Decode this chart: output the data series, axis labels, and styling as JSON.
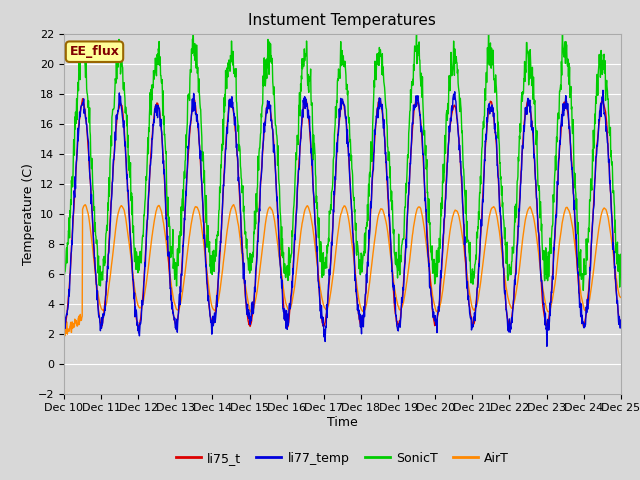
{
  "title": "Instument Temperatures",
  "xlabel": "Time",
  "ylabel": "Temperature (C)",
  "ylim": [
    -2,
    22
  ],
  "x_tick_labels": [
    "Dec 10",
    "Dec 11",
    "Dec 12",
    "Dec 13",
    "Dec 14",
    "Dec 15",
    "Dec 16",
    "Dec 17",
    "Dec 18",
    "Dec 19",
    "Dec 20",
    "Dec 21",
    "Dec 22",
    "Dec 23",
    "Dec 24",
    "Dec 25"
  ],
  "annotation_text": "EE_flux",
  "annotation_bg": "#FFFF99",
  "annotation_border": "#996600",
  "line_colors": {
    "li75_t": "#dd0000",
    "li77_temp": "#0000dd",
    "SonicT": "#00cc00",
    "AirT": "#ff8800"
  },
  "fig_bg": "#d8d8d8",
  "plot_bg": "#d8d8d8",
  "grid_color": "#ffffff",
  "title_fontsize": 11,
  "axis_fontsize": 9,
  "tick_fontsize": 8,
  "legend_fontsize": 9,
  "n_points": 1500
}
